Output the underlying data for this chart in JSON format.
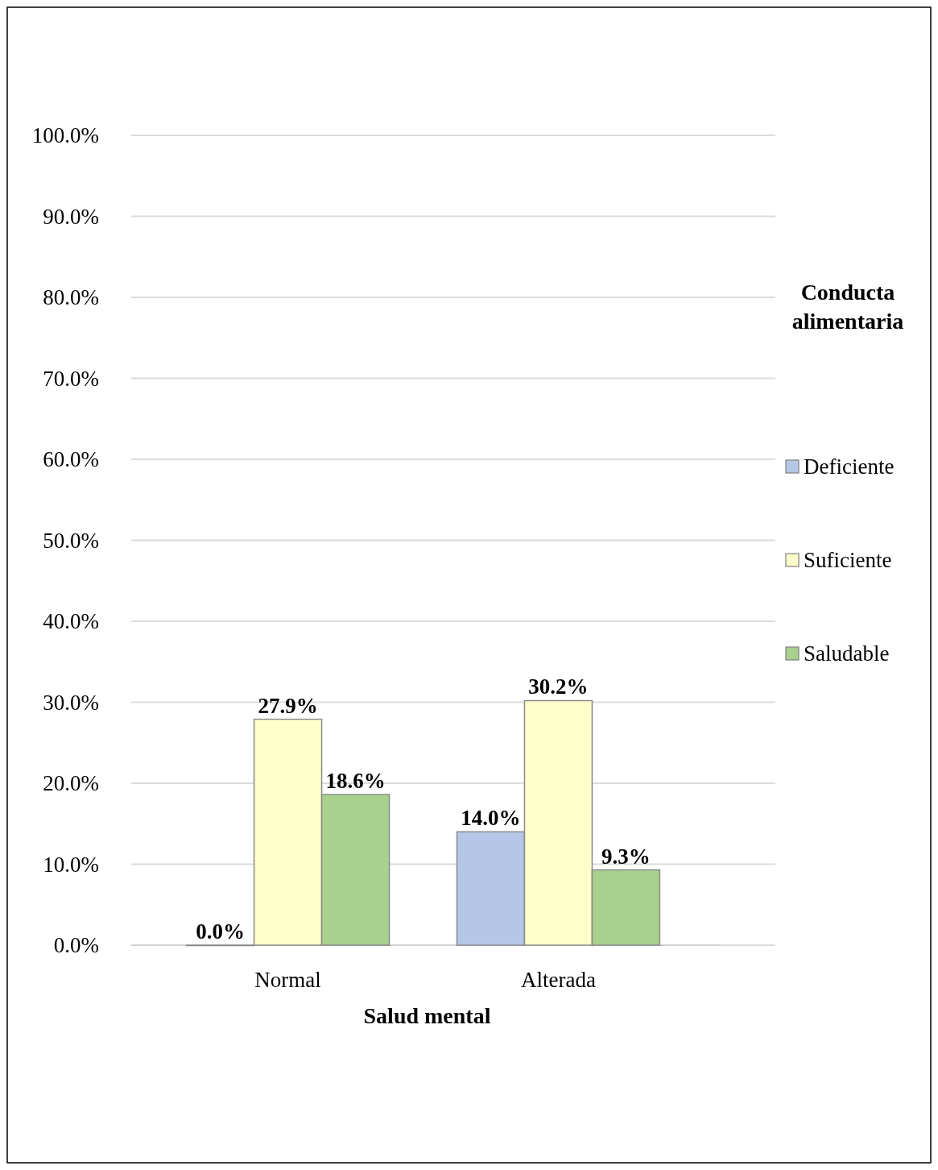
{
  "chart_data": {
    "type": "bar",
    "xlabel": "Salud mental",
    "legend_title": "Conducta alimentaria",
    "categories": [
      "Normal",
      "Alterada"
    ],
    "series": [
      {
        "name": "Deficiente",
        "color": "#b4c7e7",
        "values": [
          0.0,
          14.0
        ],
        "value_labels": [
          "0.0%",
          "14.0%"
        ]
      },
      {
        "name": "Suficiente",
        "color": "#ffffcc",
        "values": [
          27.9,
          30.2
        ],
        "value_labels": [
          "27.9%",
          "30.2%"
        ]
      },
      {
        "name": "Saludable",
        "color": "#a9d18e",
        "values": [
          18.6,
          9.3
        ],
        "value_labels": [
          "18.6%",
          "9.3%"
        ]
      }
    ],
    "ylim": [
      0,
      100
    ],
    "yticks": [
      {
        "value": 0,
        "label": "0.0%"
      },
      {
        "value": 10,
        "label": "10.0%"
      },
      {
        "value": 20,
        "label": "20.0%"
      },
      {
        "value": 30,
        "label": "30.0%"
      },
      {
        "value": 40,
        "label": "40.0%"
      },
      {
        "value": 50,
        "label": "50.0%"
      },
      {
        "value": 60,
        "label": "60.0%"
      },
      {
        "value": 70,
        "label": "70.0%"
      },
      {
        "value": 80,
        "label": "80.0%"
      },
      {
        "value": 90,
        "label": "90.0%"
      },
      {
        "value": 100,
        "label": "100.0%"
      }
    ],
    "grid": "y",
    "legend": "right"
  }
}
